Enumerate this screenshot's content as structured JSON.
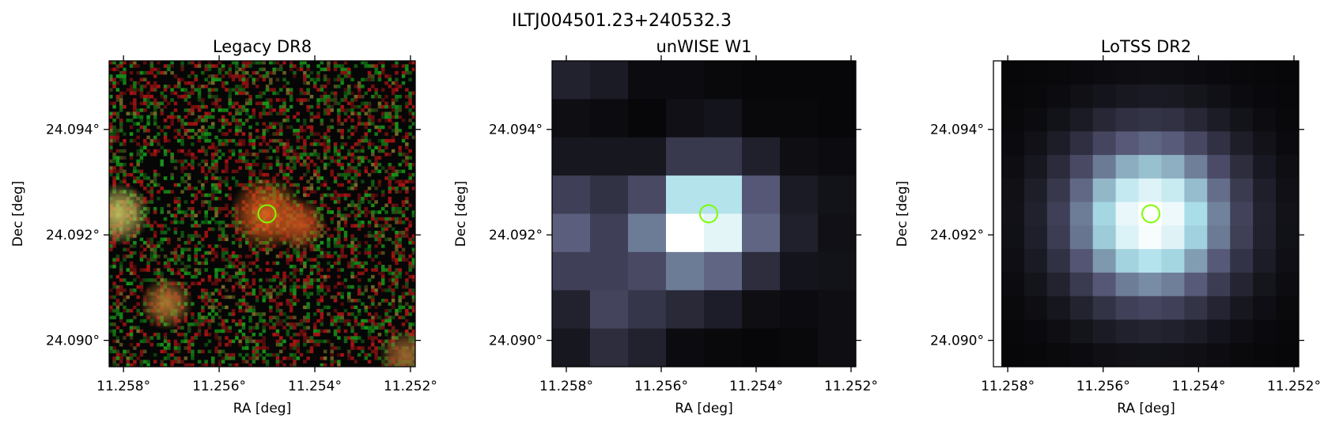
{
  "figure": {
    "suptitle": "ILTJ004501.23+240532.3"
  },
  "chart_data": [
    {
      "type": "heatmap",
      "title": "Legacy DR8",
      "xlabel": "RA [deg]",
      "ylabel": "Dec [deg]",
      "x_ticks": [
        11.258,
        11.256,
        11.254,
        11.252
      ],
      "x_tick_labels": [
        "11.258°",
        "11.256°",
        "11.254°",
        "11.252°"
      ],
      "y_ticks": [
        24.094,
        24.092,
        24.09
      ],
      "y_tick_labels": [
        "24.094°",
        "24.092°",
        "24.090°"
      ],
      "xlim": [
        11.2583,
        11.2519
      ],
      "ylim": [
        24.0895,
        24.0953
      ],
      "source_marker": {
        "ra": 11.255,
        "dec": 24.0924,
        "color": "#7cfc00"
      },
      "colormap": "rgb composite",
      "sources": [
        {
          "ra": 11.255,
          "dec": 24.0924,
          "color": "#e0631e"
        },
        {
          "ra": 11.2543,
          "dec": 24.0922,
          "color": "#c8521e"
        },
        {
          "ra": 11.2581,
          "dec": 24.0924,
          "color": "#c8c060"
        },
        {
          "ra": 11.2571,
          "dec": 24.0907,
          "color": "#b07830"
        },
        {
          "ra": 11.2521,
          "dec": 24.0897,
          "color": "#a06830"
        }
      ]
    },
    {
      "type": "heatmap",
      "title": "unWISE W1",
      "xlabel": "RA [deg]",
      "ylabel": "Dec [deg]",
      "x_ticks": [
        11.258,
        11.256,
        11.254,
        11.252
      ],
      "x_tick_labels": [
        "11.258°",
        "11.256°",
        "11.254°",
        "11.252°"
      ],
      "y_ticks": [
        24.094,
        24.092,
        24.09
      ],
      "y_tick_labels": [
        "24.094°",
        "24.092°",
        "24.090°"
      ],
      "xlim": [
        11.2583,
        11.2519
      ],
      "ylim": [
        24.0895,
        24.0953
      ],
      "source_marker": {
        "ra": 11.255,
        "dec": 24.0924,
        "color": "#7cfc00"
      },
      "colormap": "bone",
      "grid_values": [
        [
          0.15,
          0.12,
          0.05,
          0.05,
          0.04,
          0.03,
          0.03,
          0.03
        ],
        [
          0.06,
          0.05,
          0.03,
          0.07,
          0.09,
          0.04,
          0.04,
          0.03
        ],
        [
          0.1,
          0.1,
          0.1,
          0.25,
          0.25,
          0.14,
          0.06,
          0.05
        ],
        [
          0.28,
          0.22,
          0.32,
          0.78,
          0.78,
          0.38,
          0.12,
          0.08
        ],
        [
          0.4,
          0.28,
          0.48,
          1.0,
          0.92,
          0.42,
          0.14,
          0.07
        ],
        [
          0.28,
          0.28,
          0.32,
          0.48,
          0.42,
          0.2,
          0.09,
          0.08
        ],
        [
          0.15,
          0.3,
          0.24,
          0.18,
          0.13,
          0.06,
          0.05,
          0.06
        ],
        [
          0.1,
          0.2,
          0.15,
          0.05,
          0.04,
          0.03,
          0.04,
          0.06
        ]
      ]
    },
    {
      "type": "heatmap",
      "title": "LoTSS DR2",
      "xlabel": "RA [deg]",
      "ylabel": "Dec [deg]",
      "x_ticks": [
        11.258,
        11.256,
        11.254,
        11.252
      ],
      "x_tick_labels": [
        "11.258°",
        "11.256°",
        "11.254°",
        "11.252°"
      ],
      "y_ticks": [
        24.094,
        24.092,
        24.09
      ],
      "y_tick_labels": [
        "24.094°",
        "24.092°",
        "24.090°"
      ],
      "xlim": [
        11.2583,
        11.2519
      ],
      "ylim": [
        24.0895,
        24.0953
      ],
      "source_marker": {
        "ra": 11.255,
        "dec": 24.0924,
        "color": "#7cfc00"
      },
      "colormap": "bone",
      "peak": {
        "ra": 11.255,
        "dec": 24.0923
      }
    }
  ]
}
